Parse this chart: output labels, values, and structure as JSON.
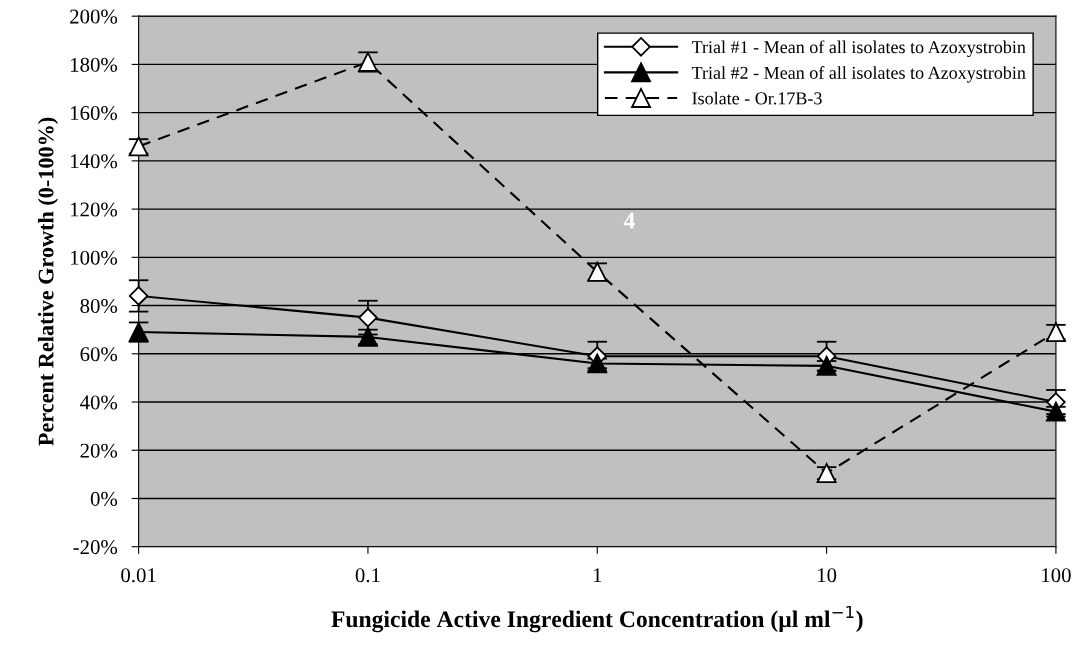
{
  "chart_data": {
    "type": "line",
    "xlabel": "Fungicide Active Ingredient Concentration (µl ml$^{−1}$)",
    "ylabel": "Percent Relative Growth (0-100%)",
    "x": [
      0.01,
      0.1,
      1,
      10,
      100
    ],
    "log": "x",
    "xlim": [
      0.01,
      100
    ],
    "xticks": [
      0.01,
      0.1,
      1,
      10,
      100
    ],
    "ylim": [
      -20,
      200
    ],
    "yticks": [
      {
        "value": -20,
        "label": "-20%"
      },
      {
        "value": 0,
        "label": "0%"
      },
      {
        "value": 20,
        "label": "20%"
      },
      {
        "value": 40,
        "label": "40%"
      },
      {
        "value": 60,
        "label": "60%"
      },
      {
        "value": 80,
        "label": "80%"
      },
      {
        "value": 100,
        "label": "100%"
      },
      {
        "value": 120,
        "label": "120%"
      },
      {
        "value": 140,
        "label": "140%"
      },
      {
        "value": 160,
        "label": "160%"
      },
      {
        "value": 180,
        "label": "180%"
      },
      {
        "value": 200,
        "label": "200%"
      }
    ],
    "grid": "y",
    "legend": "top right",
    "annotations": [
      "4"
    ],
    "series": [
      {
        "name": "Trial #1 - Mean of all isolates to Azoxystrobin",
        "color": "#ffffff",
        "marker": "diamond",
        "line_style": "solid",
        "values": [
          84,
          75,
          59,
          59,
          40
        ],
        "errors": [
          6.5,
          7,
          6,
          6,
          5
        ]
      },
      {
        "name": "Trial #2 - Mean of all isolates to Azoxystrobin",
        "color": "#000000",
        "marker": "triangle",
        "line_style": "solid",
        "values": [
          69,
          67,
          56,
          55,
          36
        ],
        "errors": [
          4,
          3,
          2,
          2,
          2
        ]
      },
      {
        "name": "Isolate - Or.17B-3",
        "color": "#ffffff",
        "marker": "triangle",
        "line_style": "dashed",
        "values": [
          146,
          181,
          94,
          10.5,
          69
        ],
        "errors": [
          3,
          4,
          3.5,
          2.5,
          3
        ]
      }
    ]
  }
}
